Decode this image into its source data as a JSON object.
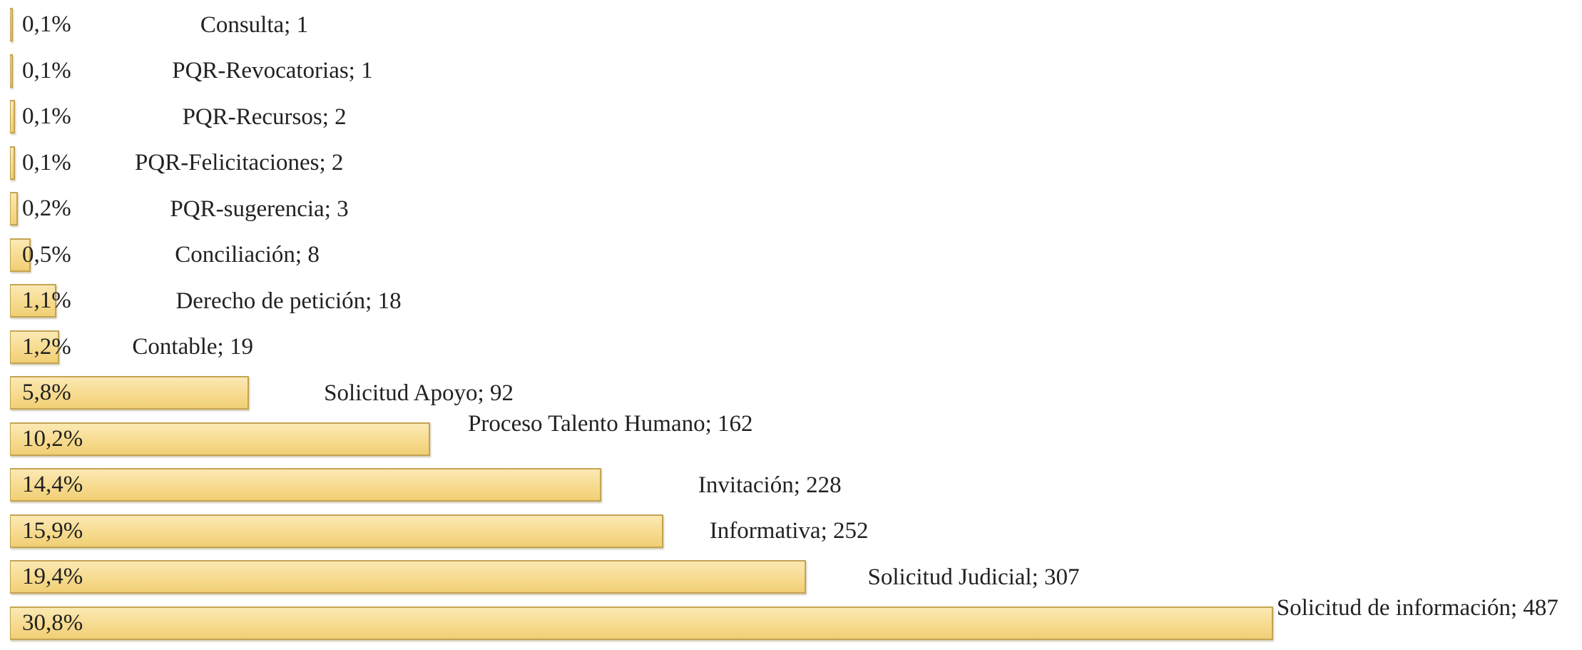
{
  "chart_data": {
    "type": "bar",
    "orientation": "horizontal",
    "color": "#f7dc92",
    "values": [
      1,
      1,
      2,
      2,
      3,
      8,
      18,
      19,
      92,
      162,
      228,
      252,
      307,
      487
    ],
    "value_labels": [
      "Consulta; 1",
      "PQR-Revocatorias; 1",
      "PQR-Recursos; 2",
      "PQR-Felicitaciones; 2",
      "PQR-sugerencia; 3",
      "Conciliación; 8",
      "Derecho de petición; 18",
      "Contable; 19",
      "Solicitud Apoyo; 92",
      "Proceso Talento Humano; 162",
      "Invitación; 228",
      "Informativa; 252",
      "Solicitud Judicial; 307",
      "Solicitud de información; 487"
    ],
    "shares": [
      0.1,
      0.1,
      0.1,
      0.1,
      0.2,
      0.5,
      1.1,
      1.2,
      5.8,
      10.2,
      14.4,
      15.9,
      19.4,
      30.8
    ],
    "share_labels": [
      "0,1%",
      "0,1%",
      "0,1%",
      "0,1%",
      "0,2%",
      "0,5%",
      "1,1%",
      "1,2%",
      "5,8%",
      "10,2%",
      "14,4%",
      "15,9%",
      "19,4%",
      "30,8%"
    ]
  }
}
